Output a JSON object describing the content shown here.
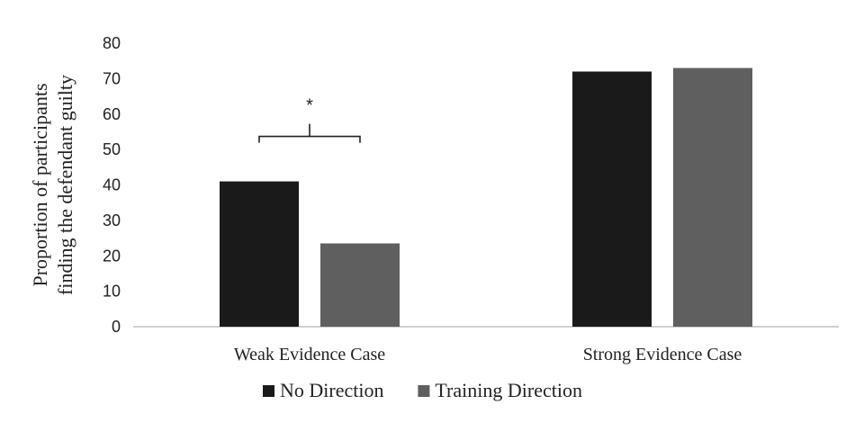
{
  "chart_data": {
    "type": "bar",
    "categories": [
      "Weak Evidence Case",
      "Strong Evidence Case"
    ],
    "series": [
      {
        "name": "No Direction",
        "values": [
          41,
          72
        ],
        "color": "#1a1a1a"
      },
      {
        "name": "Training Direction",
        "values": [
          23.5,
          73
        ],
        "color": "#5f5f5f"
      }
    ],
    "ylabel_lines": [
      "Proportion of participants",
      "finding the defendant guilty"
    ],
    "ylim": [
      0,
      80
    ],
    "yticks": [
      0,
      10,
      20,
      30,
      40,
      50,
      60,
      70,
      80
    ],
    "grid": false,
    "legend_position": "bottom",
    "annotations": [
      {
        "text": "*",
        "category": "Weak Evidence Case",
        "type": "significance-bracket"
      }
    ]
  }
}
